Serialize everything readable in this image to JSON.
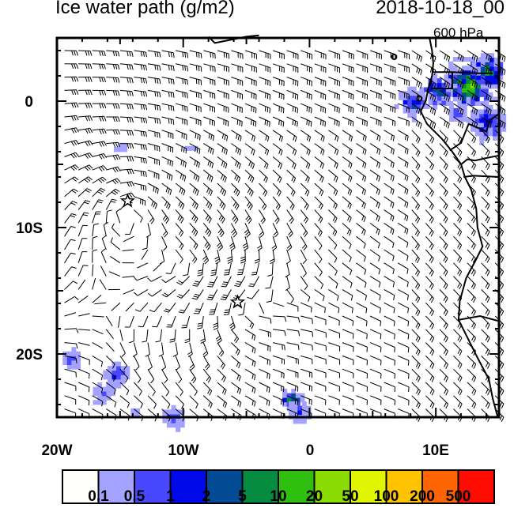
{
  "header": {
    "title": "Ice water path (g/m2)",
    "date": "2018-10-18_00",
    "level": "600 hPa"
  },
  "map": {
    "lon_range": [
      -20,
      15
    ],
    "lat_range": [
      -25,
      5
    ],
    "x_ticks": [
      {
        "value": -20,
        "label": "20W"
      },
      {
        "value": -10,
        "label": "10W"
      },
      {
        "value": 0,
        "label": "0"
      },
      {
        "value": 10,
        "label": "10E"
      }
    ],
    "y_ticks": [
      {
        "value": 0,
        "label": "0"
      },
      {
        "value": -10,
        "label": "10S"
      },
      {
        "value": -20,
        "label": "20S"
      }
    ],
    "markers": [
      {
        "name": "star",
        "lon": -14.4,
        "lat": -7.9
      },
      {
        "name": "star",
        "lon": -5.7,
        "lat": -15.9
      }
    ]
  },
  "colorbar": {
    "colors": [
      "#fffffb",
      "#a3a3ff",
      "#4848ff",
      "#0009ea",
      "#044b96",
      "#058c40",
      "#2fbf0f",
      "#8adc03",
      "#e0f600",
      "#ffc300",
      "#ff6403",
      "#ff0c03"
    ],
    "labels": [
      "0.1",
      "0.5",
      "1",
      "2",
      "5",
      "10",
      "20",
      "50",
      "100",
      "200",
      "500"
    ]
  }
}
